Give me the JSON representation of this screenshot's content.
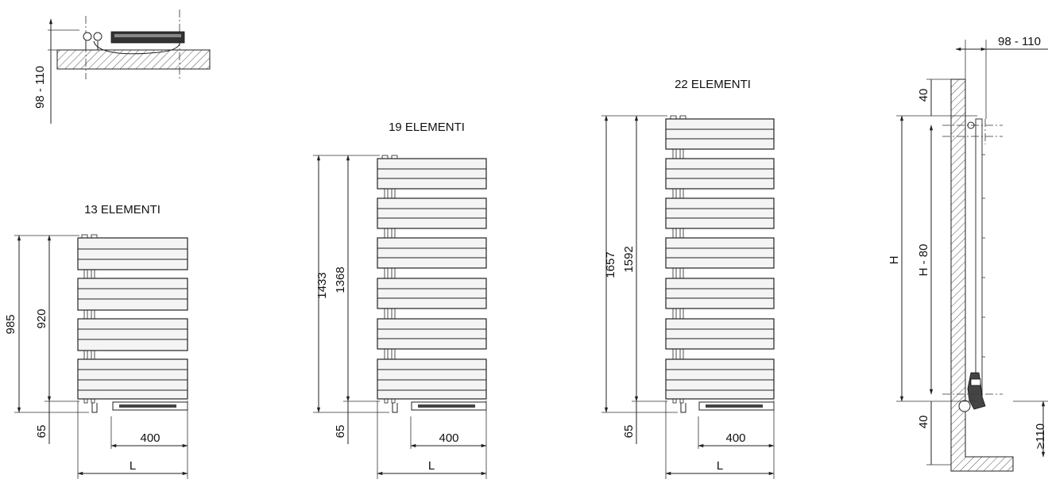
{
  "top_view": {
    "depth_label": "98 - 110"
  },
  "models": [
    {
      "title": "13 ELEMENTI",
      "total_height": "985",
      "axis_height": "920",
      "bottom_offset": "65",
      "valve_spacing": "400",
      "width_label": "L"
    },
    {
      "title": "19 ELEMENTI",
      "total_height": "1433",
      "axis_height": "1368",
      "bottom_offset": "65",
      "valve_spacing": "400",
      "width_label": "L"
    },
    {
      "title": "22 ELEMENTI",
      "total_height": "1657",
      "axis_height": "1592",
      "bottom_offset": "65",
      "valve_spacing": "400",
      "width_label": "L"
    }
  ],
  "side_view": {
    "depth_label": "98 - 110",
    "top_gap": "40",
    "bottom_gap": "40",
    "height_label": "H",
    "axis_label": "H - 80",
    "floor_label": "≥110"
  },
  "colors": {
    "line": "#222222",
    "panel_fill": "#f4f4f4",
    "hatch": "#555555"
  }
}
